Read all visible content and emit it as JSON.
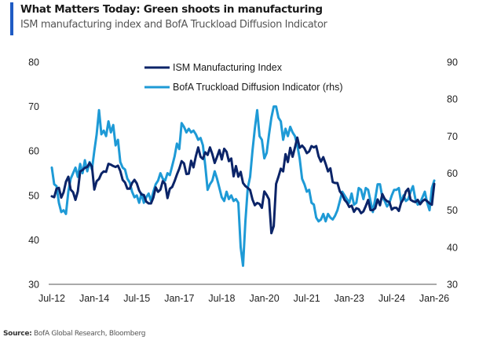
{
  "header": {
    "title": "What Matters Today: Green shoots in manufacturing",
    "subtitle": "ISM manufacturing index and BofA Truckload Diffusion Indicator",
    "accent_color": "#1f5bc4"
  },
  "footer": {
    "source_label": "Source:",
    "source_text": "BofA Global Research, Bloomberg"
  },
  "chart_data": {
    "type": "line",
    "title": "What Matters Today: Green shoots in manufacturing",
    "subtitle": "ISM manufacturing index and BofA Truckload Diffusion Indicator",
    "xlabel": "",
    "ylabel_left": "",
    "ylabel_right": "",
    "x_start": "2012-07",
    "x_end": "2026-01",
    "frequency": "monthly",
    "x_tick_labels": [
      "Jul-12",
      "Jan-14",
      "Jul-15",
      "Jan-17",
      "Jul-18",
      "Jan-20",
      "Jul-21",
      "Jan-23",
      "Jul-24",
      "Jan-26"
    ],
    "x_tick_month_index": [
      0,
      18,
      36,
      54,
      72,
      90,
      108,
      126,
      144,
      162
    ],
    "y_left": {
      "range": [
        30,
        80
      ],
      "ticks": [
        30,
        40,
        50,
        60,
        70,
        80
      ]
    },
    "y_right": {
      "range": [
        30,
        90
      ],
      "ticks": [
        30,
        40,
        50,
        60,
        70,
        80,
        90
      ]
    },
    "grid": false,
    "legend_position": "top-center",
    "series": [
      {
        "name": "ISM Manufacturing Index",
        "axis": "left",
        "color": "#0b2468",
        "values": [
          49.8,
          49.6,
          51.5,
          51.7,
          49.5,
          50.7,
          53.1,
          54.2,
          51.3,
          50.7,
          49.0,
          50.9,
          55.4,
          55.7,
          56.2,
          56.4,
          57.3,
          56.5,
          51.3,
          53.2,
          53.7,
          54.9,
          55.4,
          55.3,
          57.1,
          56.9,
          56.6,
          56.4,
          56.7,
          55.5,
          53.5,
          52.9,
          51.5,
          51.5,
          52.8,
          53.5,
          52.7,
          51.1,
          50.2,
          50.1,
          48.6,
          48.2,
          48.2,
          49.5,
          51.8,
          50.8,
          51.3,
          53.2,
          52.6,
          49.4,
          51.5,
          51.9,
          53.2,
          54.7,
          56.0,
          57.7,
          57.2,
          54.8,
          54.9,
          57.8,
          56.3,
          58.8,
          60.8,
          58.7,
          58.2,
          59.7,
          59.1,
          60.8,
          59.3,
          57.3,
          58.7,
          60.2,
          58.1,
          60.5,
          59.8,
          57.7,
          58.3,
          54.3,
          56.6,
          54.2,
          55.3,
          52.8,
          52.1,
          51.7,
          51.2,
          49.1,
          47.8,
          48.3,
          48.1,
          47.2,
          50.9,
          50.1,
          49.1,
          41.5,
          43.1,
          52.6,
          54.2,
          56.0,
          55.4,
          59.3,
          57.5,
          60.7,
          58.7,
          60.8,
          63.0,
          60.7,
          61.2,
          60.6,
          59.5,
          59.9,
          61.1,
          60.8,
          61.1,
          58.8,
          57.6,
          58.6,
          57.1,
          55.4,
          56.1,
          53.0,
          52.8,
          52.8,
          50.9,
          50.2,
          49.0,
          48.4,
          47.4,
          47.7,
          46.3,
          47.1,
          46.9,
          46.0,
          46.4,
          47.6,
          49.0,
          46.7,
          46.7,
          47.1,
          49.1,
          47.8,
          50.3,
          49.2,
          48.7,
          48.5,
          46.8,
          47.2,
          47.2,
          46.5,
          48.4,
          49.2,
          50.9,
          51.5,
          49.0,
          48.7,
          48.5,
          49.0,
          48.0,
          48.7,
          49.1,
          48.7,
          48.2,
          47.9,
          52.6
        ]
      },
      {
        "name": "BofA Truckload Diffusion Indicator (rhs)",
        "axis": "right",
        "color": "#1e9ad6",
        "values": [
          61.5,
          57.0,
          56.5,
          52.0,
          49.5,
          50.0,
          49.0,
          55.0,
          58.5,
          60.0,
          61.5,
          59.0,
          62.5,
          60.0,
          63.5,
          60.5,
          63.0,
          61.0,
          66.0,
          70.5,
          77.0,
          70.5,
          71.5,
          70.0,
          74.0,
          71.0,
          73.0,
          67.5,
          69.0,
          63.0,
          61.5,
          61.0,
          58.5,
          57.5,
          55.0,
          53.5,
          54.0,
          52.0,
          54.5,
          52.0,
          53.5,
          54.5,
          52.5,
          55.0,
          57.0,
          58.0,
          60.0,
          58.5,
          58.0,
          60.0,
          59.5,
          62.0,
          64.5,
          68.0,
          66.5,
          73.5,
          72.5,
          71.0,
          72.0,
          71.0,
          71.5,
          70.5,
          69.0,
          69.5,
          67.5,
          62.0,
          55.5,
          57.0,
          58.0,
          60.5,
          58.5,
          56.0,
          53.5,
          52.5,
          55.0,
          53.0,
          54.0,
          52.5,
          53.0,
          52.0,
          40.0,
          35.0,
          47.0,
          56.0,
          59.0,
          66.0,
          72.0,
          77.0,
          70.0,
          69.0,
          64.0,
          65.5,
          70.5,
          75.0,
          78.0,
          78.0,
          75.0,
          74.0,
          69.0,
          72.0,
          70.0,
          72.5,
          71.0,
          70.0,
          67.5,
          64.0,
          58.5,
          57.0,
          55.0,
          55.5,
          52.0,
          51.5,
          48.0,
          47.0,
          47.5,
          49.0,
          47.0,
          49.0,
          48.0,
          47.5,
          48.5,
          50.0,
          52.5,
          55.0,
          54.0,
          53.0,
          52.0,
          54.5,
          51.5,
          52.0,
          56.0,
          55.5,
          53.0,
          56.0,
          55.5,
          52.5,
          49.5,
          53.0,
          57.0,
          57.0,
          53.5,
          52.5,
          51.0,
          52.0,
          54.0,
          55.5,
          55.5,
          56.0,
          52.0,
          54.0,
          52.5,
          53.0,
          55.0,
          56.5,
          53.0,
          51.5,
          52.0,
          53.5,
          55.0,
          52.0,
          50.0,
          56.0,
          58.0
        ]
      }
    ]
  }
}
